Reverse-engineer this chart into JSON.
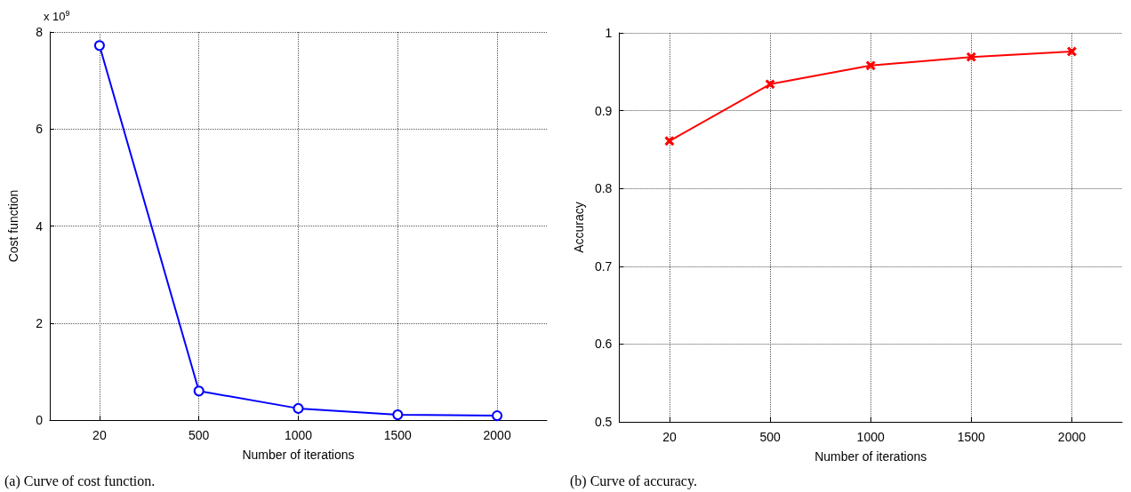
{
  "chart_data": [
    {
      "type": "line",
      "title": "(a) Curve of cost function.",
      "xlabel": "Number of iterations",
      "ylabel": "Cost function",
      "categories": [
        "20",
        "500",
        "1000",
        "1500",
        "2000"
      ],
      "values": [
        7.72,
        0.6,
        0.24,
        0.11,
        0.09
      ],
      "color": "#0000ff",
      "marker": "circle",
      "ylim": [
        0,
        8
      ],
      "yticks": [
        0,
        2,
        4,
        6,
        8
      ],
      "grid": true,
      "annotations": [
        "x 10$^{9}$"
      ]
    },
    {
      "type": "line",
      "title": "(b) Curve of accuracy.",
      "xlabel": "Number of iterations",
      "ylabel": "Accuracy",
      "categories": [
        "20",
        "500",
        "1000",
        "1500",
        "2000"
      ],
      "values": [
        0.861,
        0.934,
        0.958,
        0.969,
        0.976
      ],
      "color": "#ff0000",
      "marker": "cross",
      "ylim": [
        0.5,
        1
      ],
      "yticks": [
        0.5,
        0.6,
        0.7,
        0.8,
        0.9,
        1
      ],
      "grid": true
    }
  ]
}
